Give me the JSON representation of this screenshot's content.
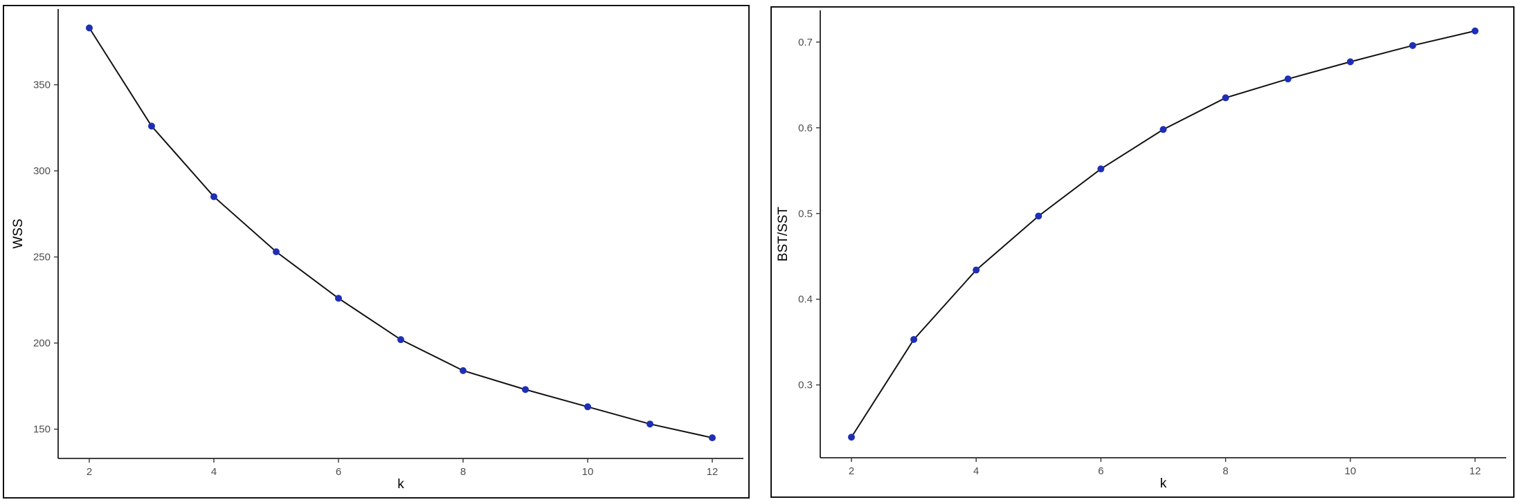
{
  "chart_data": [
    {
      "type": "line",
      "title": "",
      "xlabel": "k",
      "ylabel": "WSS",
      "x": [
        2,
        3,
        4,
        5,
        6,
        7,
        8,
        9,
        10,
        11,
        12
      ],
      "series": [
        {
          "values": [
            383,
            326,
            285,
            253,
            226,
            202,
            184,
            173,
            163,
            153,
            145
          ]
        }
      ],
      "xlim": [
        1.5,
        12.5
      ],
      "ylim": [
        133,
        394
      ],
      "xticks": [
        2,
        4,
        6,
        8,
        10,
        12
      ],
      "yticks": [
        150,
        200,
        250,
        300,
        350
      ],
      "xtick_labels": [
        "2",
        "4",
        "6",
        "8",
        "10",
        "12"
      ],
      "ytick_labels": [
        "150",
        "200",
        "250",
        "300",
        "350"
      ],
      "grid": false,
      "line_color": "#111111",
      "point_color": "#1f2fb5"
    },
    {
      "type": "line",
      "title": "",
      "xlabel": "k",
      "ylabel": "BST/SST",
      "x": [
        2,
        3,
        4,
        5,
        6,
        7,
        8,
        9,
        10,
        11,
        12
      ],
      "series": [
        {
          "values": [
            0.239,
            0.353,
            0.434,
            0.497,
            0.552,
            0.598,
            0.635,
            0.657,
            0.677,
            0.696,
            0.713
          ]
        }
      ],
      "xlim": [
        1.5,
        12.5
      ],
      "ylim": [
        0.215,
        0.737
      ],
      "xticks": [
        2,
        4,
        6,
        8,
        10,
        12
      ],
      "yticks": [
        0.3,
        0.4,
        0.5,
        0.6,
        0.7
      ],
      "xtick_labels": [
        "2",
        "4",
        "6",
        "8",
        "10",
        "12"
      ],
      "ytick_labels": [
        "0.3",
        "0.4",
        "0.5",
        "0.6",
        "0.7"
      ],
      "grid": false,
      "line_color": "#111111",
      "point_color": "#1f2fb5"
    }
  ]
}
